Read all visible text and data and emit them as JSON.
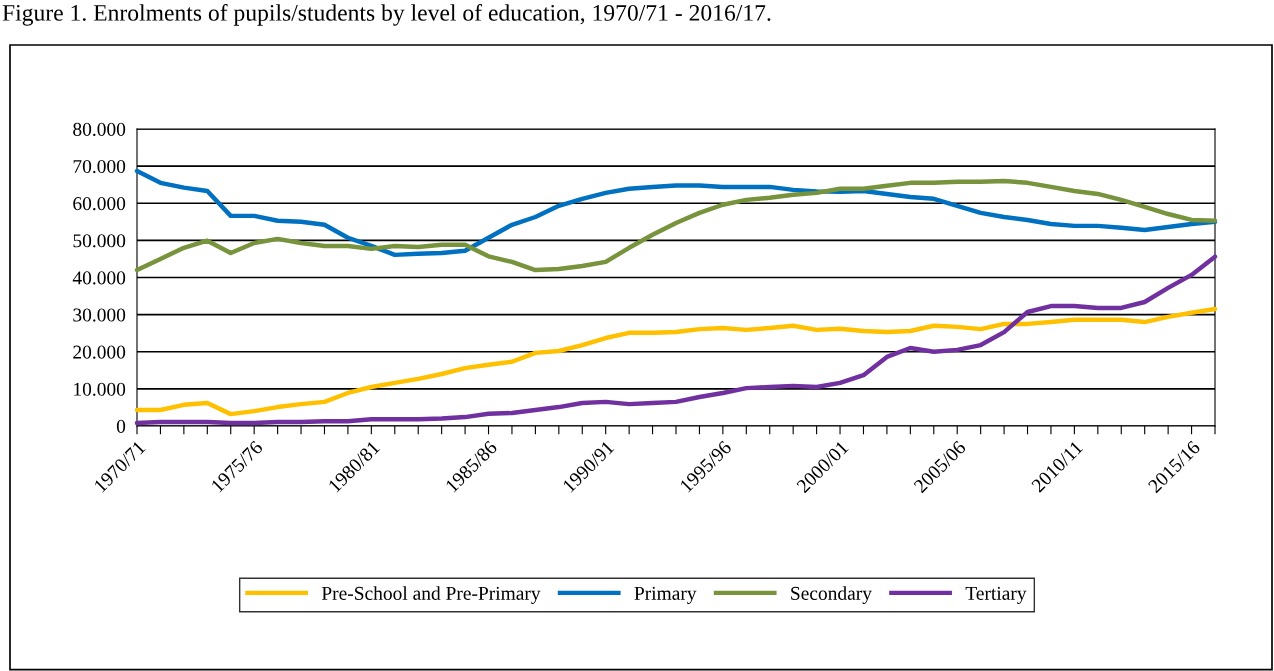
{
  "chart_data": {
    "type": "line",
    "title": "Figure 1. Enrolments of pupils/students by level of education, 1970/71 - 2016/17.",
    "categories": [
      "1970/71",
      null,
      null,
      null,
      null,
      "1975/76",
      null,
      null,
      null,
      null,
      "1980/81",
      null,
      null,
      null,
      null,
      "1985/86",
      null,
      null,
      null,
      null,
      "1990/91",
      null,
      null,
      null,
      null,
      "1995/96",
      null,
      null,
      null,
      null,
      "2000/01",
      null,
      null,
      null,
      null,
      "2005/06",
      null,
      null,
      null,
      null,
      "2010/11",
      null,
      null,
      null,
      null,
      "2015/16",
      null
    ],
    "series": [
      {
        "name": "Pre-School and Pre-Primary",
        "color": "#ffc000",
        "values": [
          4300,
          4300,
          5700,
          6200,
          3200,
          4000,
          5100,
          5900,
          6500,
          8900,
          10500,
          11600,
          12700,
          14000,
          15600,
          16500,
          17300,
          19700,
          20200,
          21800,
          23700,
          25100,
          25100,
          25300,
          26100,
          26400,
          25900,
          26400,
          27000,
          25900,
          26200,
          25600,
          25300,
          25600,
          27000,
          26700,
          26100,
          27500,
          27500,
          28000,
          28600,
          28600,
          28600,
          28000,
          29400,
          30500,
          31500
        ]
      },
      {
        "name": "Primary",
        "color": "#0070c0",
        "values": [
          68700,
          65500,
          64200,
          63300,
          56600,
          56600,
          55300,
          55000,
          54200,
          50700,
          48500,
          46100,
          46400,
          46600,
          47200,
          50700,
          54200,
          56300,
          59300,
          61200,
          62800,
          63900,
          64400,
          64800,
          64800,
          64400,
          64400,
          64400,
          63600,
          63200,
          63100,
          63300,
          62500,
          61700,
          61200,
          59300,
          57400,
          56300,
          55500,
          54400,
          53900,
          53900,
          53400,
          52800,
          53600,
          54400,
          55000
        ]
      },
      {
        "name": "Secondary",
        "color": "#77933c",
        "values": [
          42000,
          45000,
          48000,
          49900,
          46600,
          49300,
          50400,
          49300,
          48500,
          48500,
          47700,
          48500,
          48200,
          48800,
          48800,
          45700,
          44200,
          42000,
          42300,
          43100,
          44200,
          48000,
          51500,
          54700,
          57400,
          59600,
          60900,
          61500,
          62300,
          62800,
          63900,
          63900,
          64700,
          65500,
          65500,
          65800,
          65800,
          66000,
          65500,
          64400,
          63300,
          62500,
          60900,
          59000,
          57100,
          55500,
          55300
        ]
      },
      {
        "name": "Tertiary",
        "color": "#7030a0",
        "values": [
          800,
          1100,
          1100,
          1100,
          800,
          800,
          1100,
          1100,
          1300,
          1300,
          1800,
          1800,
          1800,
          2000,
          2400,
          3300,
          3500,
          4300,
          5100,
          6200,
          6500,
          5900,
          6200,
          6500,
          7800,
          8900,
          10200,
          10500,
          10800,
          10500,
          11600,
          13700,
          18600,
          21000,
          20000,
          20500,
          21800,
          25300,
          30700,
          32300,
          32300,
          31800,
          31800,
          33400,
          37200,
          40700,
          45600
        ]
      }
    ],
    "ylim": [
      0,
      80000
    ],
    "yticks": [
      {
        "value": 0,
        "label": "0"
      },
      {
        "value": 10000,
        "label": "10.000"
      },
      {
        "value": 20000,
        "label": "20.000"
      },
      {
        "value": 30000,
        "label": "30.000"
      },
      {
        "value": 40000,
        "label": "40.000"
      },
      {
        "value": 50000,
        "label": "50.000"
      },
      {
        "value": 60000,
        "label": "60.000"
      },
      {
        "value": 70000,
        "label": "70.000"
      },
      {
        "value": 80000,
        "label": "80.000"
      }
    ],
    "grid": "y",
    "legend": "bottom",
    "marker": "none",
    "line_style": "solid"
  }
}
